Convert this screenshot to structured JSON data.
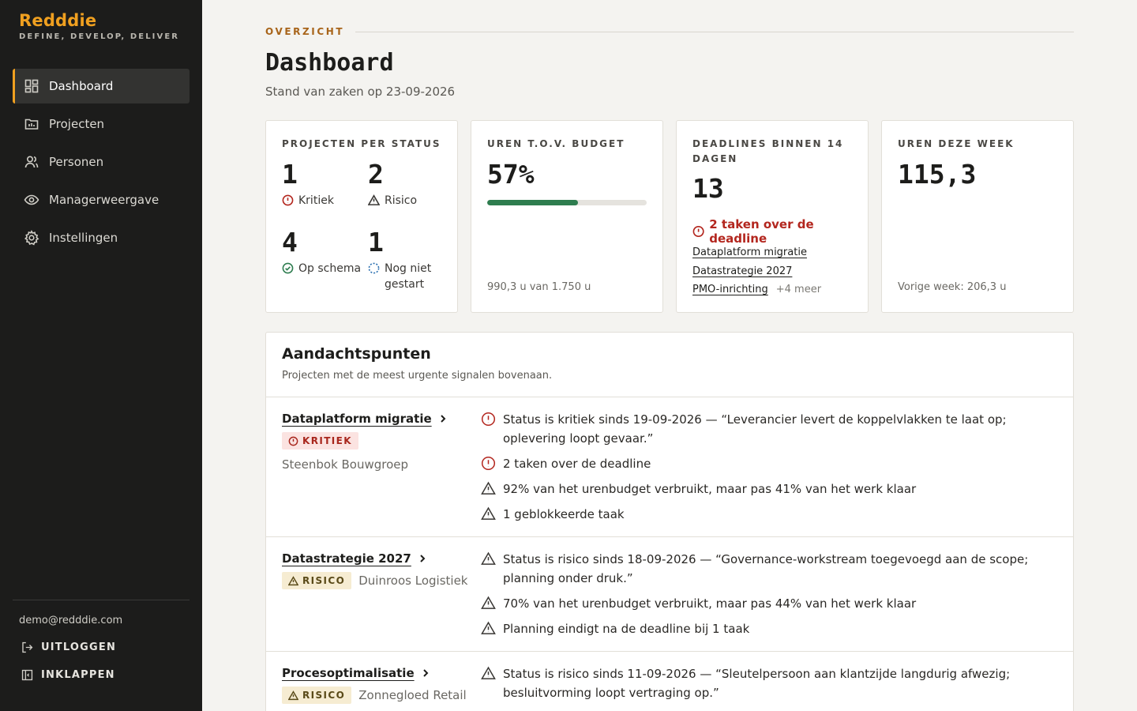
{
  "brand": {
    "name": "Redddie",
    "tagline": "DEFINE, DEVELOP, DELIVER",
    "accent": "#f0a020"
  },
  "nav": [
    {
      "label": "Dashboard",
      "icon": "dashboard-icon",
      "active": true
    },
    {
      "label": "Projecten",
      "icon": "folder-chart-icon"
    },
    {
      "label": "Personen",
      "icon": "users-icon"
    },
    {
      "label": "Managerweergave",
      "icon": "eye-icon"
    },
    {
      "label": "Instellingen",
      "icon": "gear-icon"
    }
  ],
  "user": {
    "email": "demo@redddie.com"
  },
  "actions": {
    "logout": "UITLOGGEN",
    "collapse": "INKLAPPEN"
  },
  "header": {
    "eyebrow": "OVERZICHT",
    "title": "Dashboard",
    "subtitle": "Stand van zaken op 23-09-2026"
  },
  "cards": {
    "status": {
      "title": "PROJECTEN PER STATUS",
      "items": [
        {
          "count": "1",
          "label": "Kritiek",
          "icon": "alert-circle-icon",
          "color": "#b3261e"
        },
        {
          "count": "2",
          "label": "Risico",
          "icon": "warning-triangle-icon",
          "color": "#3a3835"
        },
        {
          "count": "4",
          "label": "Op schema",
          "icon": "check-circle-icon",
          "color": "#2e7d4f"
        },
        {
          "count": "1",
          "label": "Nog niet gestart",
          "icon": "dashed-circle-icon",
          "color": "#2a6fb0"
        }
      ]
    },
    "budget": {
      "title": "UREN T.O.V. BUDGET",
      "percent": "57%",
      "progress": 0.57,
      "footer": "990,3 u van 1.750 u",
      "color": "#2e7d4f"
    },
    "deadlines": {
      "title": "DEADLINES BINNEN 14 DAGEN",
      "count": "13",
      "warning": "2 taken over de deadline",
      "links": [
        "Dataplatform migratie",
        "Datastrategie 2027",
        "PMO-inrichting"
      ],
      "more": "+4 meer"
    },
    "week": {
      "title": "UREN DEZE WEEK",
      "value": "115,3",
      "footer": "Vorige week: 206,3 u"
    }
  },
  "attention": {
    "title": "Aandachtspunten",
    "subtitle": "Projecten met de meest urgente signalen bovenaan.",
    "rows": [
      {
        "project": "Dataplatform migratie",
        "badge": "KRITIEK",
        "client": "Steenbok Bouwgroep",
        "signals": [
          {
            "type": "critical",
            "text": "Status is kritiek sinds 19-09-2026 — “Leverancier levert de koppelvlakken te laat op; oplevering loopt gevaar.”"
          },
          {
            "type": "critical",
            "text": "2 taken over de deadline"
          },
          {
            "type": "warning",
            "text": "92% van het urenbudget verbruikt, maar pas 41% van het werk klaar"
          },
          {
            "type": "warning",
            "text": "1 geblokkeerde taak"
          }
        ]
      },
      {
        "project": "Datastrategie 2027",
        "badge": "RISICO",
        "client": "Duinroos Logistiek",
        "signals": [
          {
            "type": "warning",
            "text": "Status is risico sinds 18-09-2026 — “Governance-workstream toegevoegd aan de scope; planning onder druk.”"
          },
          {
            "type": "warning",
            "text": "70% van het urenbudget verbruikt, maar pas 44% van het werk klaar"
          },
          {
            "type": "warning",
            "text": "Planning eindigt na de deadline bij 1 taak"
          }
        ]
      },
      {
        "project": "Procesoptimalisatie",
        "badge": "RISICO",
        "client": "Zonnegloed Retail",
        "signals": [
          {
            "type": "warning",
            "text": "Status is risico sinds 11-09-2026 — “Sleutelpersoon aan klantzijde langdurig afwezig; besluitvorming loopt vertraging op.”"
          }
        ]
      }
    ]
  }
}
